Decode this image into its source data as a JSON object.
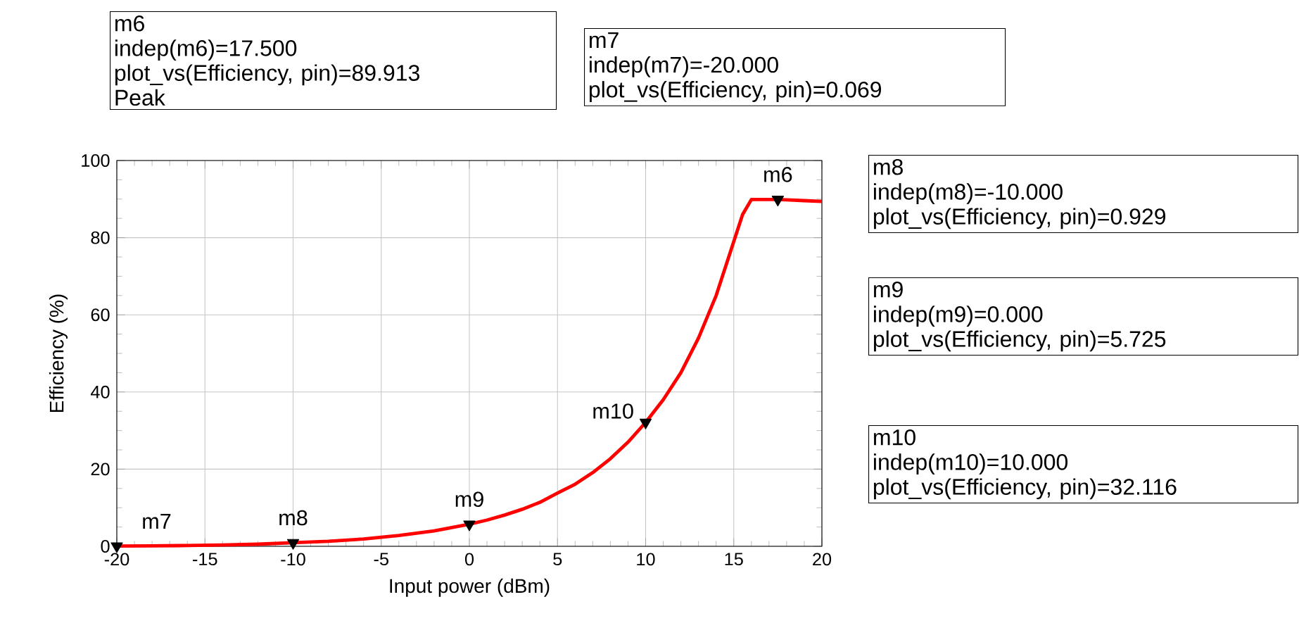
{
  "chart_data": {
    "type": "line",
    "xlabel": "Input power (dBm)",
    "ylabel": "Efficiency (%)",
    "xlim": [
      -20,
      20
    ],
    "ylim": [
      0,
      100
    ],
    "xticks": [
      -20,
      -15,
      -10,
      -5,
      0,
      5,
      10,
      15,
      20
    ],
    "yticks": [
      0,
      20,
      40,
      60,
      80,
      100
    ],
    "grid": true,
    "marker": "none",
    "line_style": "solid",
    "series": [
      {
        "color": "#ff0000",
        "x": [
          -20,
          -18,
          -16,
          -14,
          -12,
          -10,
          -8,
          -6,
          -4,
          -2,
          0,
          1,
          2,
          3,
          4,
          5,
          6,
          7,
          8,
          9,
          10,
          11,
          12,
          13,
          14,
          15,
          15.5,
          16,
          17.5,
          18,
          19,
          20
        ],
        "values": [
          0.069,
          0.12,
          0.2,
          0.33,
          0.55,
          0.929,
          1.3,
          1.9,
          2.8,
          4.0,
          5.725,
          6.8,
          8.1,
          9.6,
          11.4,
          13.8,
          16.1,
          19.1,
          22.7,
          27.0,
          32.116,
          38,
          45,
          54,
          65,
          79,
          86,
          89.9,
          89.913,
          89.8,
          89.6,
          89.4
        ]
      },
      {
        "type": "scatter",
        "marker": "triangle",
        "color": "#000000",
        "x": [
          17.5,
          -20,
          -10,
          0,
          10
        ],
        "values": [
          89.913,
          0.069,
          0.929,
          5.725,
          32.116
        ]
      }
    ],
    "annotations": [
      "m6",
      "indep(m6)=17.500",
      "plot_vs(Efficiency, pin)=89.913",
      "Peak",
      "m7",
      "indep(m7)=-20.000",
      "plot_vs(Efficiency, pin)=0.069",
      "m8",
      "indep(m8)=-10.000",
      "plot_vs(Efficiency, pin)=0.929",
      "m9",
      "indep(m9)=0.000",
      "plot_vs(Efficiency, pin)=5.725",
      "m10",
      "indep(m10)=10.000",
      "plot_vs(Efficiency, pin)=32.116",
      {
        "text": "m6",
        "x": 17.5,
        "y": 89.913
      },
      {
        "text": "m7",
        "x": -20,
        "y": 0.069
      },
      {
        "text": "m8",
        "x": -10,
        "y": 0.929
      },
      {
        "text": "m9",
        "x": 0,
        "y": 5.725
      },
      {
        "text": "m10",
        "x": 10,
        "y": 32.116
      }
    ]
  }
}
